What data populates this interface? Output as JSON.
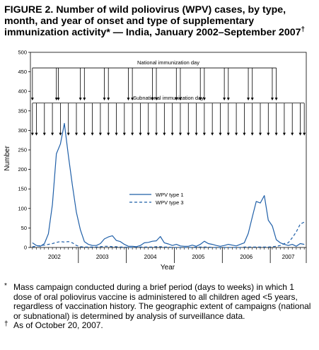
{
  "figure": {
    "title": "FIGURE 2. Number of wild poliovirus (WPV) cases, by type, month, and year of onset and type of supplementary immunization activity* — India, January 2002–September 2007",
    "title_mark": "†"
  },
  "footnotes": [
    {
      "mark": "*",
      "text": "Mass campaign conducted during a brief period (days to weeks) in which 1 dose of oral poliovirus vaccine is administered to all children aged <5 years, regardless of vaccination history. The geographic extent of campaigns (national or subnational) is determined by analysis of surveillance data."
    },
    {
      "mark": "†",
      "text": "As of October 20, 2007."
    }
  ],
  "chart_data": {
    "type": "line",
    "title": "",
    "xlabel": "Year",
    "ylabel": "Number",
    "ylim": [
      0,
      500
    ],
    "yticks": [
      0,
      50,
      100,
      150,
      200,
      250,
      300,
      350,
      400,
      450,
      500
    ],
    "x_unit": "month index (1 = January 2002)",
    "xlim": [
      0.5,
      69.5
    ],
    "year_labels": [
      {
        "label": "2002",
        "months": 12
      },
      {
        "label": "2003",
        "months": 12
      },
      {
        "label": "2004",
        "months": 12
      },
      {
        "label": "2005",
        "months": 12
      },
      {
        "label": "2006",
        "months": 12
      },
      {
        "label": "2007",
        "months": 9
      }
    ],
    "legend_position": "center",
    "series": [
      {
        "name": "WPV type 1",
        "style": "solid",
        "color": "#1f5fa8",
        "values": [
          12,
          5,
          3,
          10,
          35,
          110,
          240,
          265,
          318,
          235,
          160,
          90,
          45,
          15,
          8,
          5,
          5,
          10,
          22,
          27,
          30,
          18,
          15,
          8,
          3,
          3,
          2,
          5,
          12,
          13,
          16,
          17,
          28,
          12,
          9,
          5,
          8,
          4,
          3,
          3,
          6,
          3,
          8,
          16,
          10,
          8,
          5,
          3,
          5,
          8,
          6,
          4,
          8,
          12,
          36,
          78,
          118,
          114,
          133,
          70,
          55,
          20,
          12,
          8,
          5,
          8,
          3,
          10,
          8
        ]
      },
      {
        "name": "WPV type 3",
        "style": "dashed",
        "color": "#1f5fa8",
        "values": [
          2,
          3,
          5,
          6,
          8,
          10,
          13,
          15,
          14,
          15,
          12,
          5,
          2,
          1,
          1,
          1,
          1,
          2,
          3,
          3,
          2,
          2,
          1,
          1,
          0,
          0,
          1,
          1,
          1,
          1,
          1,
          2,
          2,
          1,
          1,
          0,
          0,
          0,
          0,
          0,
          0,
          1,
          1,
          1,
          1,
          0,
          0,
          0,
          0,
          0,
          0,
          0,
          0,
          1,
          1,
          1,
          1,
          1,
          1,
          1,
          2,
          3,
          5,
          10,
          12,
          25,
          40,
          60,
          65
        ]
      }
    ],
    "campaigns": [
      {
        "label": "National immunization day",
        "y": 460,
        "months": [
          1,
          7,
          7.5,
          13,
          14,
          19,
          20,
          25,
          26,
          31,
          32,
          37,
          38,
          43,
          44,
          49,
          50,
          55,
          56,
          61,
          62
        ]
      },
      {
        "label": "Subnational immunization day",
        "y": 370,
        "months": [
          1,
          2,
          4,
          6,
          8,
          10,
          12,
          14,
          16,
          18,
          20,
          22,
          24,
          26,
          28,
          30,
          32,
          34,
          36,
          38,
          40,
          42,
          44,
          46,
          48,
          50,
          52,
          54,
          56,
          58,
          60,
          62,
          64,
          66,
          68,
          69
        ]
      }
    ]
  }
}
